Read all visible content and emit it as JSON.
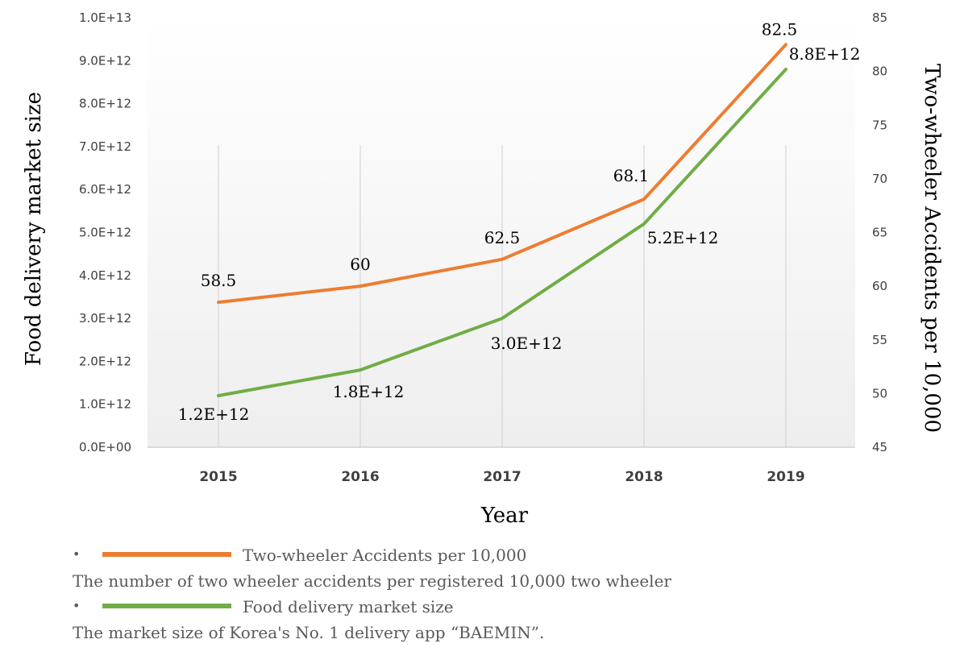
{
  "chart_data": {
    "type": "line",
    "categories": [
      "2015",
      "2016",
      "2017",
      "2018",
      "2019"
    ],
    "xlabel": "Year",
    "ylabel": "Food delivery market size",
    "y2label": "Two-wheeler Accidents per 10,000",
    "ylim": [
      0,
      10000000000000
    ],
    "y2lim": [
      45,
      85
    ],
    "yticks": [
      "0.0E+00",
      "1.0E+12",
      "2.0E+12",
      "3.0E+12",
      "4.0E+12",
      "5.0E+12",
      "6.0E+12",
      "7.0E+12",
      "8.0E+12",
      "9.0E+12",
      "1.0E+13"
    ],
    "y2ticks": [
      "45",
      "50",
      "55",
      "60",
      "65",
      "70",
      "75",
      "80",
      "85"
    ],
    "series": [
      {
        "name": "Two-wheeler Accidents per 10,000",
        "axis": "right",
        "color": "#ED7D31",
        "values": [
          58.5,
          60,
          62.5,
          68.1,
          82.5
        ],
        "labels": [
          "58.5",
          "60",
          "62.5",
          "68.1",
          "82.5"
        ]
      },
      {
        "name": "Food delivery market size",
        "axis": "left",
        "color": "#70AD47",
        "values": [
          1200000000000,
          1800000000000,
          3000000000000,
          5200000000000,
          8800000000000
        ],
        "labels": [
          "1.2E+12",
          "1.8E+12",
          "3.0E+12",
          "5.2E+12",
          "8.8E+12"
        ]
      }
    ],
    "grid": "vertical lines at categories"
  },
  "legend": {
    "items": [
      {
        "bullet": "•",
        "label": "Two-wheeler Accidents per 10,000",
        "description": "The number of two wheeler accidents per registered 10,000 two wheeler",
        "color": "#ED7D31"
      },
      {
        "bullet": "•",
        "label": "Food delivery market size",
        "description": "The market size of Korea's No. 1 delivery app “BAEMIN”.",
        "color": "#70AD47"
      }
    ]
  }
}
